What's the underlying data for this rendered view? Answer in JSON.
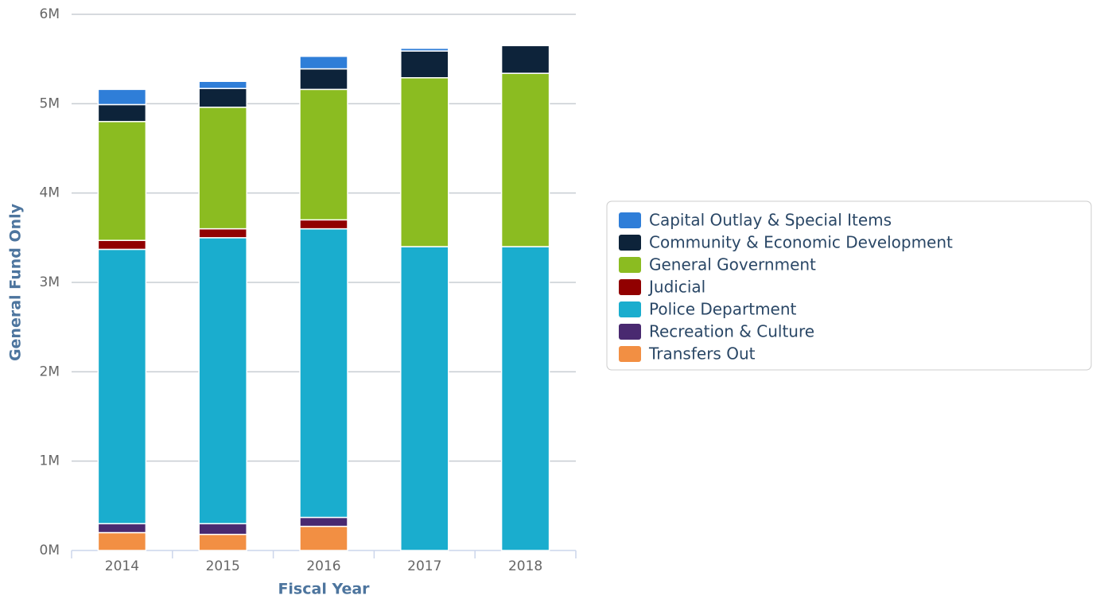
{
  "chart_data": {
    "type": "stacked_bar",
    "x_label": "Fiscal Year",
    "y_label": "General Fund Only",
    "categories": [
      "2014",
      "2015",
      "2016",
      "2017",
      "2018"
    ],
    "series": [
      {
        "name": "Transfers Out",
        "color": "#f28f43",
        "values": [
          200000,
          180000,
          270000,
          0,
          0
        ]
      },
      {
        "name": "Recreation & Culture",
        "color": "#492970",
        "values": [
          100000,
          120000,
          100000,
          0,
          0
        ]
      },
      {
        "name": "Police Department",
        "color": "#1aadce",
        "values": [
          3070000,
          3200000,
          3230000,
          3400000,
          3400000
        ]
      },
      {
        "name": "Judicial",
        "color": "#910000",
        "values": [
          100000,
          100000,
          100000,
          0,
          0
        ]
      },
      {
        "name": "General Government",
        "color": "#8bbc21",
        "values": [
          1330000,
          1360000,
          1460000,
          1890000,
          1940000
        ]
      },
      {
        "name": "Community & Economic Development",
        "color": "#0d233a",
        "values": [
          190000,
          210000,
          230000,
          300000,
          310000
        ]
      },
      {
        "name": "Capital Outlay & Special Items",
        "color": "#2f7ed8",
        "values": [
          170000,
          80000,
          140000,
          30000,
          0
        ]
      }
    ],
    "ylim": [
      0,
      6000000
    ],
    "yticks": [
      {
        "value": 0,
        "label": "0M"
      },
      {
        "value": 1000000,
        "label": "1M"
      },
      {
        "value": 2000000,
        "label": "2M"
      },
      {
        "value": 3000000,
        "label": "3M"
      },
      {
        "value": 4000000,
        "label": "4M"
      },
      {
        "value": 5000000,
        "label": "5M"
      },
      {
        "value": 6000000,
        "label": "6M"
      }
    ],
    "grid": true,
    "legend": "right"
  }
}
